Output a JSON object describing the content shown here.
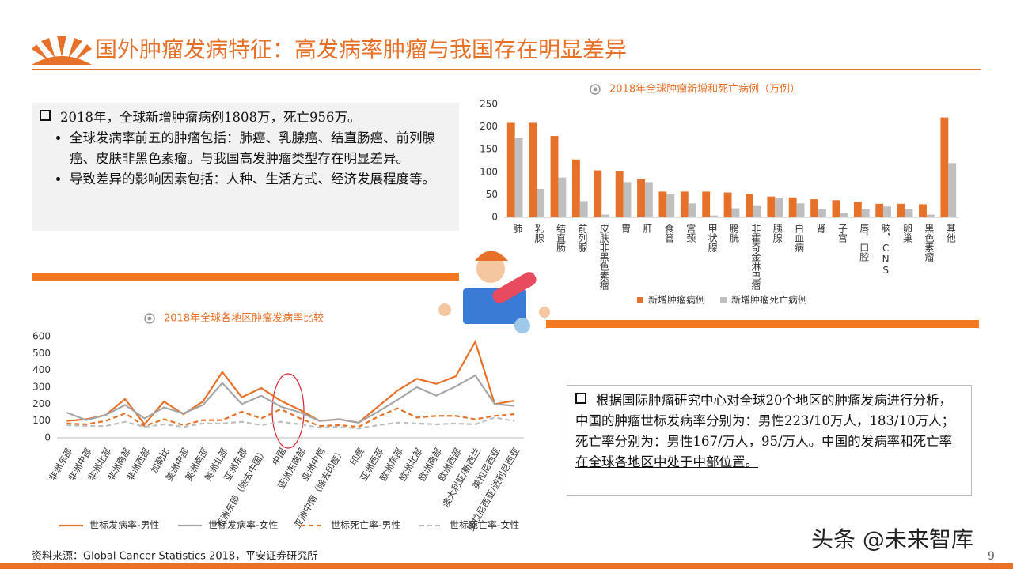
{
  "header": {
    "title": "国外肿瘤发病特征：高发病率肿瘤与我国存在明显差异"
  },
  "summary": {
    "lead": "2018年，全球新增肿瘤病例1808万，死亡956万。",
    "bullets": [
      "全球发病率前五的肿瘤包括：肺癌、乳腺癌、结直肠癌、前列腺癌、皮肤非黑色素瘤。与我国高发肿瘤类型存在明显差异。",
      "导致差异的影响因素包括：人种、生活方式、经济发展程度等。"
    ]
  },
  "note": {
    "text": "根据国际肿瘤研究中心对全球20个地区的肿瘤发病进行分析，中国的肿瘤世标发病率分别为：男性223/10万人，183/10万人；死亡率分别为：男性167/万人，95/万人。",
    "highlight": "中国的发病率和死亡率在全球各地区中处于中部位置。"
  },
  "source": "资料来源：Global Cancer Statistics 2018，平安证券研究所",
  "watermark": "头条 @未来智库",
  "page_number": "9",
  "chart_data": [
    {
      "type": "bar",
      "title": "2018年全球肿瘤新增和死亡病例（万例）",
      "categories": [
        "肺",
        "乳腺",
        "结直肠",
        "前列腺",
        "皮肤非黑色素瘤",
        "胃",
        "肝",
        "食管",
        "宫颈",
        "甲状腺",
        "膀胱",
        "非霍奇金淋巴瘤",
        "胰腺",
        "白血病",
        "肾",
        "子宫",
        "唇，口腔",
        "脑，CNS",
        "卵巢",
        "黑色素瘤",
        "其他"
      ],
      "series": [
        {
          "name": "新增肿瘤病例",
          "color": "#e8712a",
          "values": [
            209,
            209,
            180,
            128,
            104,
            103,
            84,
            57,
            57,
            57,
            55,
            51,
            46,
            44,
            40,
            38,
            35,
            30,
            30,
            29,
            221
          ]
        },
        {
          "name": "新增肿瘤死亡病例",
          "color": "#bfbfbf",
          "values": [
            176,
            63,
            88,
            36,
            6,
            78,
            78,
            51,
            31,
            4,
            20,
            25,
            43,
            31,
            18,
            9,
            18,
            24,
            18,
            6,
            120
          ]
        }
      ],
      "ylim": [
        0,
        250
      ],
      "yticks": [
        0,
        50,
        100,
        150,
        200,
        250
      ],
      "grid": false,
      "legend": "bottom"
    },
    {
      "type": "line",
      "title": "2018年全球各地区肿瘤发病率比较",
      "categories": [
        "非洲东部",
        "非洲中部",
        "非洲北部",
        "非洲南部",
        "非洲西部",
        "加勒比",
        "美洲中部",
        "美洲南部",
        "美洲北部",
        "亚洲东部",
        "亚洲东部（除去中国）",
        "中国",
        "亚洲东南部",
        "亚洲中南",
        "亚洲中南（除去印度）",
        "印度",
        "亚洲西部",
        "欧洲东部",
        "欧洲北部",
        "欧洲南部",
        "欧洲西部",
        "澳大利亚/新西兰",
        "美拉尼西亚",
        "美拉尼西亚/波利尼西亚"
      ],
      "series": [
        {
          "name": "世标发病率-男性",
          "color": "#e8712a",
          "dashed": false,
          "values": [
            100,
            110,
            135,
            230,
            80,
            215,
            140,
            215,
            390,
            240,
            295,
            220,
            165,
            100,
            110,
            90,
            185,
            280,
            350,
            320,
            365,
            570,
            200,
            220
          ]
        },
        {
          "name": "世标发病率-女性",
          "color": "#a6a6a6",
          "dashed": false,
          "values": [
            150,
            105,
            135,
            195,
            115,
            180,
            145,
            195,
            325,
            200,
            250,
            185,
            150,
            100,
            110,
            90,
            155,
            225,
            300,
            250,
            305,
            370,
            200,
            190
          ]
        },
        {
          "name": "世标死亡率-男性",
          "color": "#e8712a",
          "dashed": true,
          "values": [
            85,
            80,
            100,
            145,
            70,
            110,
            75,
            105,
            105,
            155,
            115,
            170,
            115,
            70,
            75,
            65,
            125,
            175,
            120,
            130,
            130,
            110,
            130,
            140
          ]
        },
        {
          "name": "世标死亡率-女性",
          "color": "#bfbfbf",
          "dashed": true,
          "values": [
            75,
            70,
            70,
            95,
            65,
            80,
            65,
            85,
            85,
            95,
            75,
            95,
            80,
            60,
            65,
            55,
            75,
            90,
            85,
            80,
            85,
            80,
            120,
            100
          ]
        }
      ],
      "ylim": [
        0,
        600
      ],
      "yticks": [
        0,
        100,
        200,
        300,
        400,
        500,
        600
      ],
      "grid": false,
      "legend": "bottom"
    }
  ]
}
